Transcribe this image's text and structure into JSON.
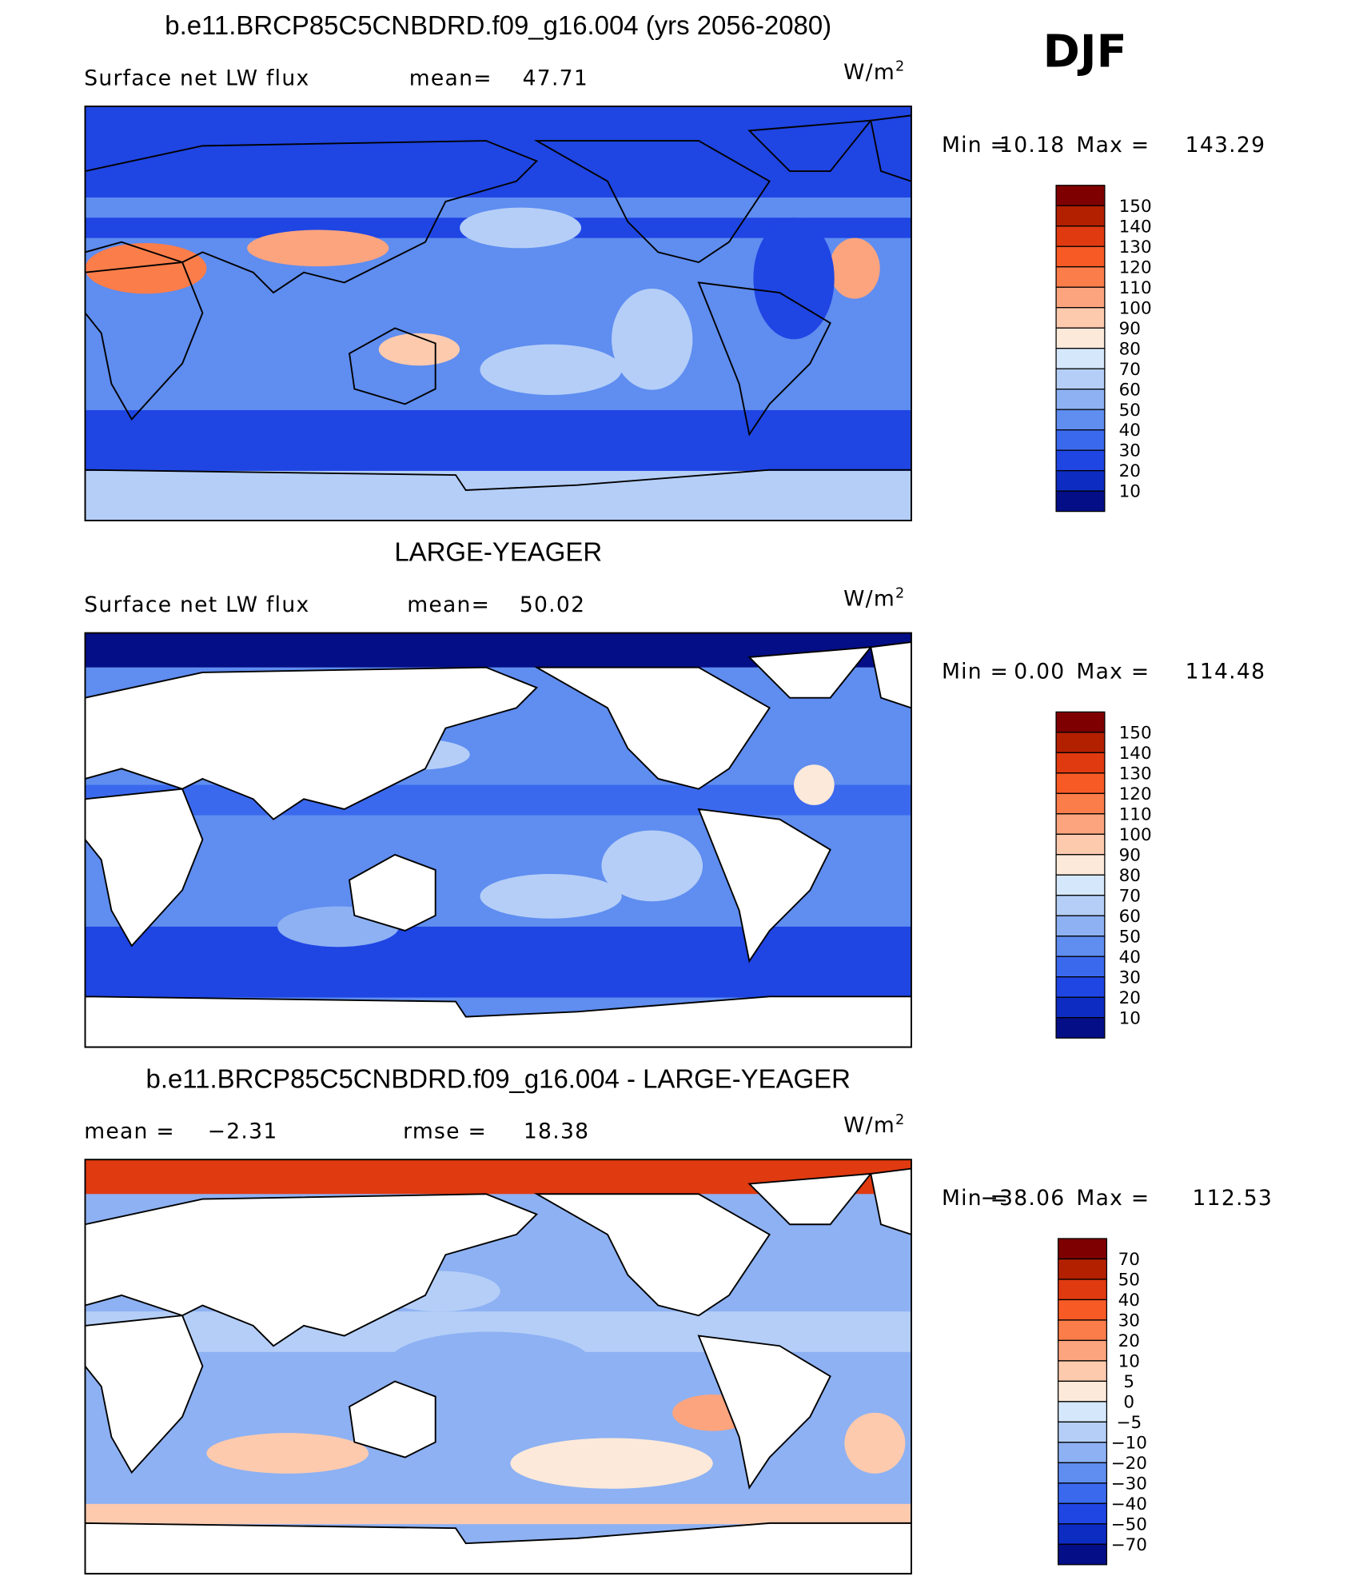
{
  "season": "DJF",
  "panels": [
    {
      "title": "b.e11.BRCP85C5CNBDRD.f09_g16.004 (yrs 2056-2080)",
      "subtitle": [
        "Surface net LW flux",
        "mean=",
        "47.71"
      ],
      "units": "W/m",
      "units_sup": "2",
      "minmax": [
        "Min =",
        "10.18",
        "Max =",
        "143.29"
      ],
      "colorbar": {
        "labels": [
          "150",
          "140",
          "130",
          "120",
          "110",
          "100",
          "90",
          "80",
          "70",
          "60",
          "50",
          "40",
          "30",
          "20",
          "10"
        ],
        "colors": [
          "#7f0000",
          "#b32000",
          "#e03a10",
          "#f75a25",
          "#fa7d4a",
          "#fca47e",
          "#fdcaae",
          "#fde9d9",
          "#d5e7fb",
          "#b4cef7",
          "#8db1f3",
          "#5f8df0",
          "#3b69ee",
          "#1f45e3",
          "#0d2cc2",
          "#040e86"
        ]
      }
    },
    {
      "title": "LARGE-YEAGER",
      "subtitle": [
        "Surface net LW flux",
        "mean=",
        "50.02"
      ],
      "units": "W/m",
      "units_sup": "2",
      "minmax": [
        "Min =",
        "0.00",
        "Max =",
        "114.48"
      ],
      "colorbar": {
        "labels": [
          "150",
          "140",
          "130",
          "120",
          "110",
          "100",
          "90",
          "80",
          "70",
          "60",
          "50",
          "40",
          "30",
          "20",
          "10"
        ],
        "colors": [
          "#7f0000",
          "#b32000",
          "#e03a10",
          "#f75a25",
          "#fa7d4a",
          "#fca47e",
          "#fdcaae",
          "#fde9d9",
          "#d5e7fb",
          "#b4cef7",
          "#8db1f3",
          "#5f8df0",
          "#3b69ee",
          "#1f45e3",
          "#0d2cc2",
          "#040e86"
        ]
      }
    },
    {
      "title": "b.e11.BRCP85C5CNBDRD.f09_g16.004 - LARGE-YEAGER",
      "subtitle": [
        "mean =",
        "−2.31",
        "rmse =",
        "18.38"
      ],
      "units": "W/m",
      "units_sup": "2",
      "minmax": [
        "Min =",
        "−38.06",
        "Max =",
        "112.53"
      ],
      "colorbar": {
        "labels": [
          "70",
          "50",
          "40",
          "30",
          "20",
          "10",
          "5",
          "0",
          "−5",
          "−10",
          "−20",
          "−30",
          "−40",
          "−50",
          "−70"
        ],
        "colors": [
          "#7f0000",
          "#b32000",
          "#e03a10",
          "#f75a25",
          "#fa7d4a",
          "#fca47e",
          "#fdcaae",
          "#fde9d9",
          "#d5e7fb",
          "#b4cef7",
          "#8db1f3",
          "#5f8df0",
          "#3b69ee",
          "#1f45e3",
          "#0d2cc2",
          "#040e86"
        ]
      }
    }
  ]
}
